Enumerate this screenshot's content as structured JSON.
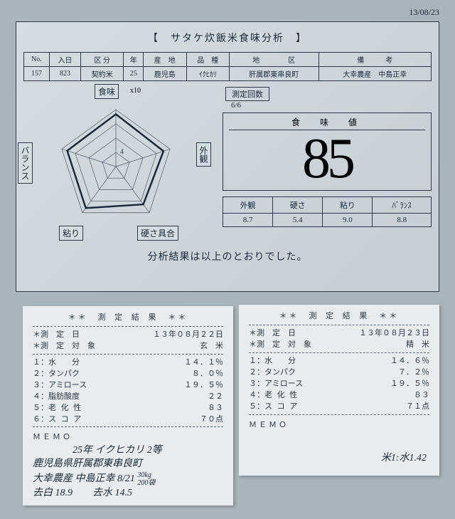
{
  "date_top": "13/08/23",
  "title": "【　サタケ炊飯米食味分析　】",
  "info_headers": [
    "No.",
    "入日",
    "区 分",
    "年",
    "産　地",
    "品　種",
    "地　　　　区",
    "備　　　考"
  ],
  "info_values": [
    "157",
    "823",
    "契約米",
    "25",
    "鹿児島",
    "ｲｸﾋｶﾘ",
    "肝属郡東串良町",
    "大幸農産　中島正幸"
  ],
  "pentagon": {
    "labels": {
      "top": "食味",
      "right": "外観",
      "left": "バランス",
      "bottom_left": "粘り",
      "bottom_right": "硬さ具合"
    },
    "x10": "x10",
    "inner_label": "4",
    "grid_color": "#4a5a6a",
    "data_color": "#1a2a3a",
    "rings": [
      0.25,
      0.5,
      0.75,
      1.0
    ],
    "data": [
      0.92,
      0.88,
      0.82,
      0.9,
      0.9
    ]
  },
  "count": {
    "label": "測定回数",
    "value": "6/6"
  },
  "score": {
    "title": "食　味　値",
    "value": "85"
  },
  "sub_headers": [
    "外観",
    "硬さ",
    "粘り",
    "ﾊﾞﾗﾝｽ"
  ],
  "sub_values": [
    "8.7",
    "5.4",
    "9.0",
    "8.8"
  ],
  "result_msg": "分析結果は以上のとおりでした。",
  "receipt1": {
    "title": "＊＊　測 定 結 果　＊＊",
    "date_label": "＊測　定　日",
    "date": "１３年０８月２２日",
    "target_label": "＊測　定　対　象",
    "target": "玄　米",
    "rows": [
      {
        "k": "１：水　　分",
        "v": "１４．１％"
      },
      {
        "k": "２：タンパク",
        "v": "８．０％"
      },
      {
        "k": "３：アミロース",
        "v": "１９．５％"
      },
      {
        "k": "４：脂肪酸度",
        "v": "２２"
      },
      {
        "k": "５：老 化 性",
        "v": "８３"
      },
      {
        "k": "６：ス コ ア",
        "v": "７０点"
      }
    ],
    "memo_label": "ＭＥＭＯ",
    "hw_lines": [
      "　　　　25年 イクヒカリ 2等",
      "鹿児島県肝属郡東串良町",
      "大幸農産 中島正幸 8/21 <small>30kg<br>200袋</small>",
      "去白 18.9　　去水 14.5"
    ]
  },
  "receipt2": {
    "title": "＊＊　測 定 結 果　＊＊",
    "date_label": "＊測　定　日",
    "date": "１３年０８月２３日",
    "target_label": "＊測　定　対　象",
    "target": "精　米",
    "rows": [
      {
        "k": "１：水　　分",
        "v": "１４．６％"
      },
      {
        "k": "２：タンパク",
        "v": "７．２％"
      },
      {
        "k": "３：アミロース",
        "v": "１９．５％"
      },
      {
        "k": "４：老 化 性",
        "v": "８３"
      },
      {
        "k": "５：ス コ ア",
        "v": "７１点"
      }
    ],
    "memo_label": "ＭＥＭＯ",
    "hw_right": "米1:水1.42"
  }
}
